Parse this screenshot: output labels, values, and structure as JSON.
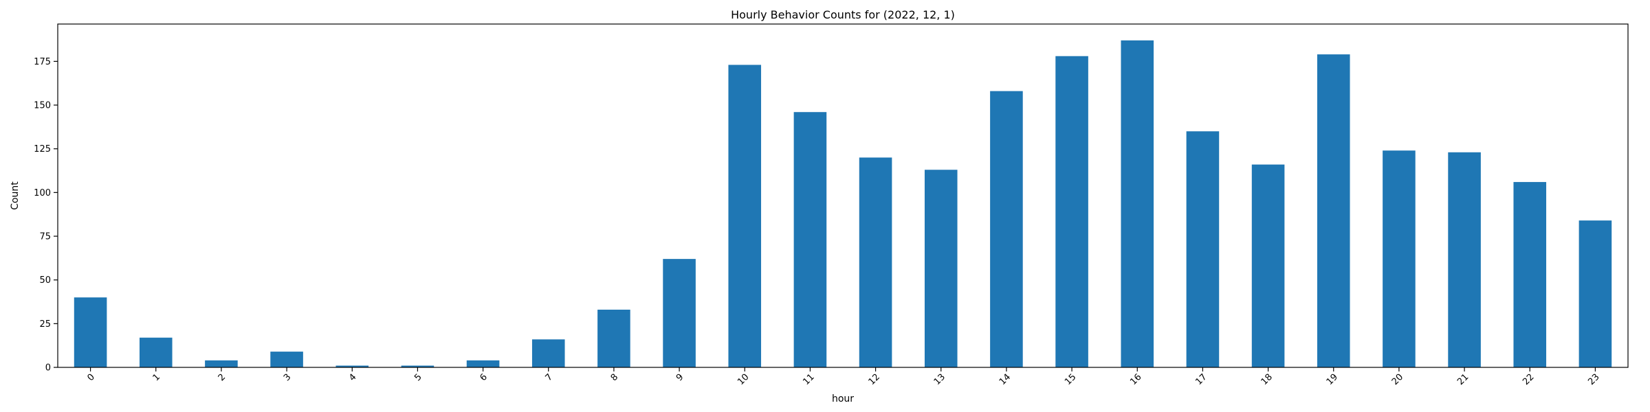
{
  "chart_data": {
    "type": "bar",
    "title": "Hourly Behavior Counts for (2022, 12, 1)",
    "xlabel": "hour",
    "ylabel": "Count",
    "categories": [
      "0",
      "1",
      "2",
      "3",
      "4",
      "5",
      "6",
      "7",
      "8",
      "9",
      "10",
      "11",
      "12",
      "13",
      "14",
      "15",
      "16",
      "17",
      "18",
      "19",
      "20",
      "21",
      "22",
      "23"
    ],
    "values": [
      40,
      17,
      4,
      9,
      1,
      1,
      4,
      16,
      33,
      62,
      173,
      146,
      120,
      113,
      158,
      178,
      187,
      135,
      116,
      179,
      124,
      123,
      106,
      84
    ],
    "ylim": [
      0,
      196.35
    ],
    "yticks": [
      0,
      25,
      50,
      75,
      100,
      125,
      150,
      175
    ],
    "xtick_rotation": 45,
    "grid": false,
    "bar_color": "#1f77b4",
    "legend": "none"
  }
}
